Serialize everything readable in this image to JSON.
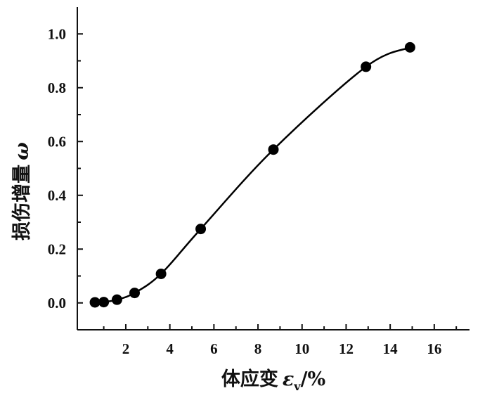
{
  "chart_data": {
    "type": "scatter",
    "xlabel": "体应变",
    "xlabel_symbol": "ε",
    "xlabel_subscript": "v",
    "xlabel_unit": "/%",
    "ylabel": "损伤增量",
    "ylabel_symbol": "ω",
    "xlim": [
      -0.2,
      17.6
    ],
    "ylim": [
      -0.1,
      1.1
    ],
    "xticks": [
      "2",
      "4",
      "6",
      "8",
      "10",
      "12",
      "14",
      "16"
    ],
    "xtick_values": [
      2,
      4,
      6,
      8,
      10,
      12,
      14,
      16
    ],
    "yticks": [
      "0.0",
      "0.2",
      "0.4",
      "0.6",
      "0.8",
      "1.0"
    ],
    "ytick_values": [
      0.0,
      0.2,
      0.4,
      0.6,
      0.8,
      1.0
    ],
    "grid": false,
    "legend": "none",
    "series": [
      {
        "style": "markers",
        "color": "#000000",
        "x": [
          0.6,
          1.0,
          1.6,
          2.4,
          3.6,
          5.4,
          8.7,
          12.9,
          14.9
        ],
        "y": [
          0.002,
          0.003,
          0.012,
          0.037,
          0.108,
          0.275,
          0.57,
          0.878,
          0.95
        ]
      },
      {
        "style": "fitted-curve",
        "color": "#000000"
      }
    ]
  }
}
